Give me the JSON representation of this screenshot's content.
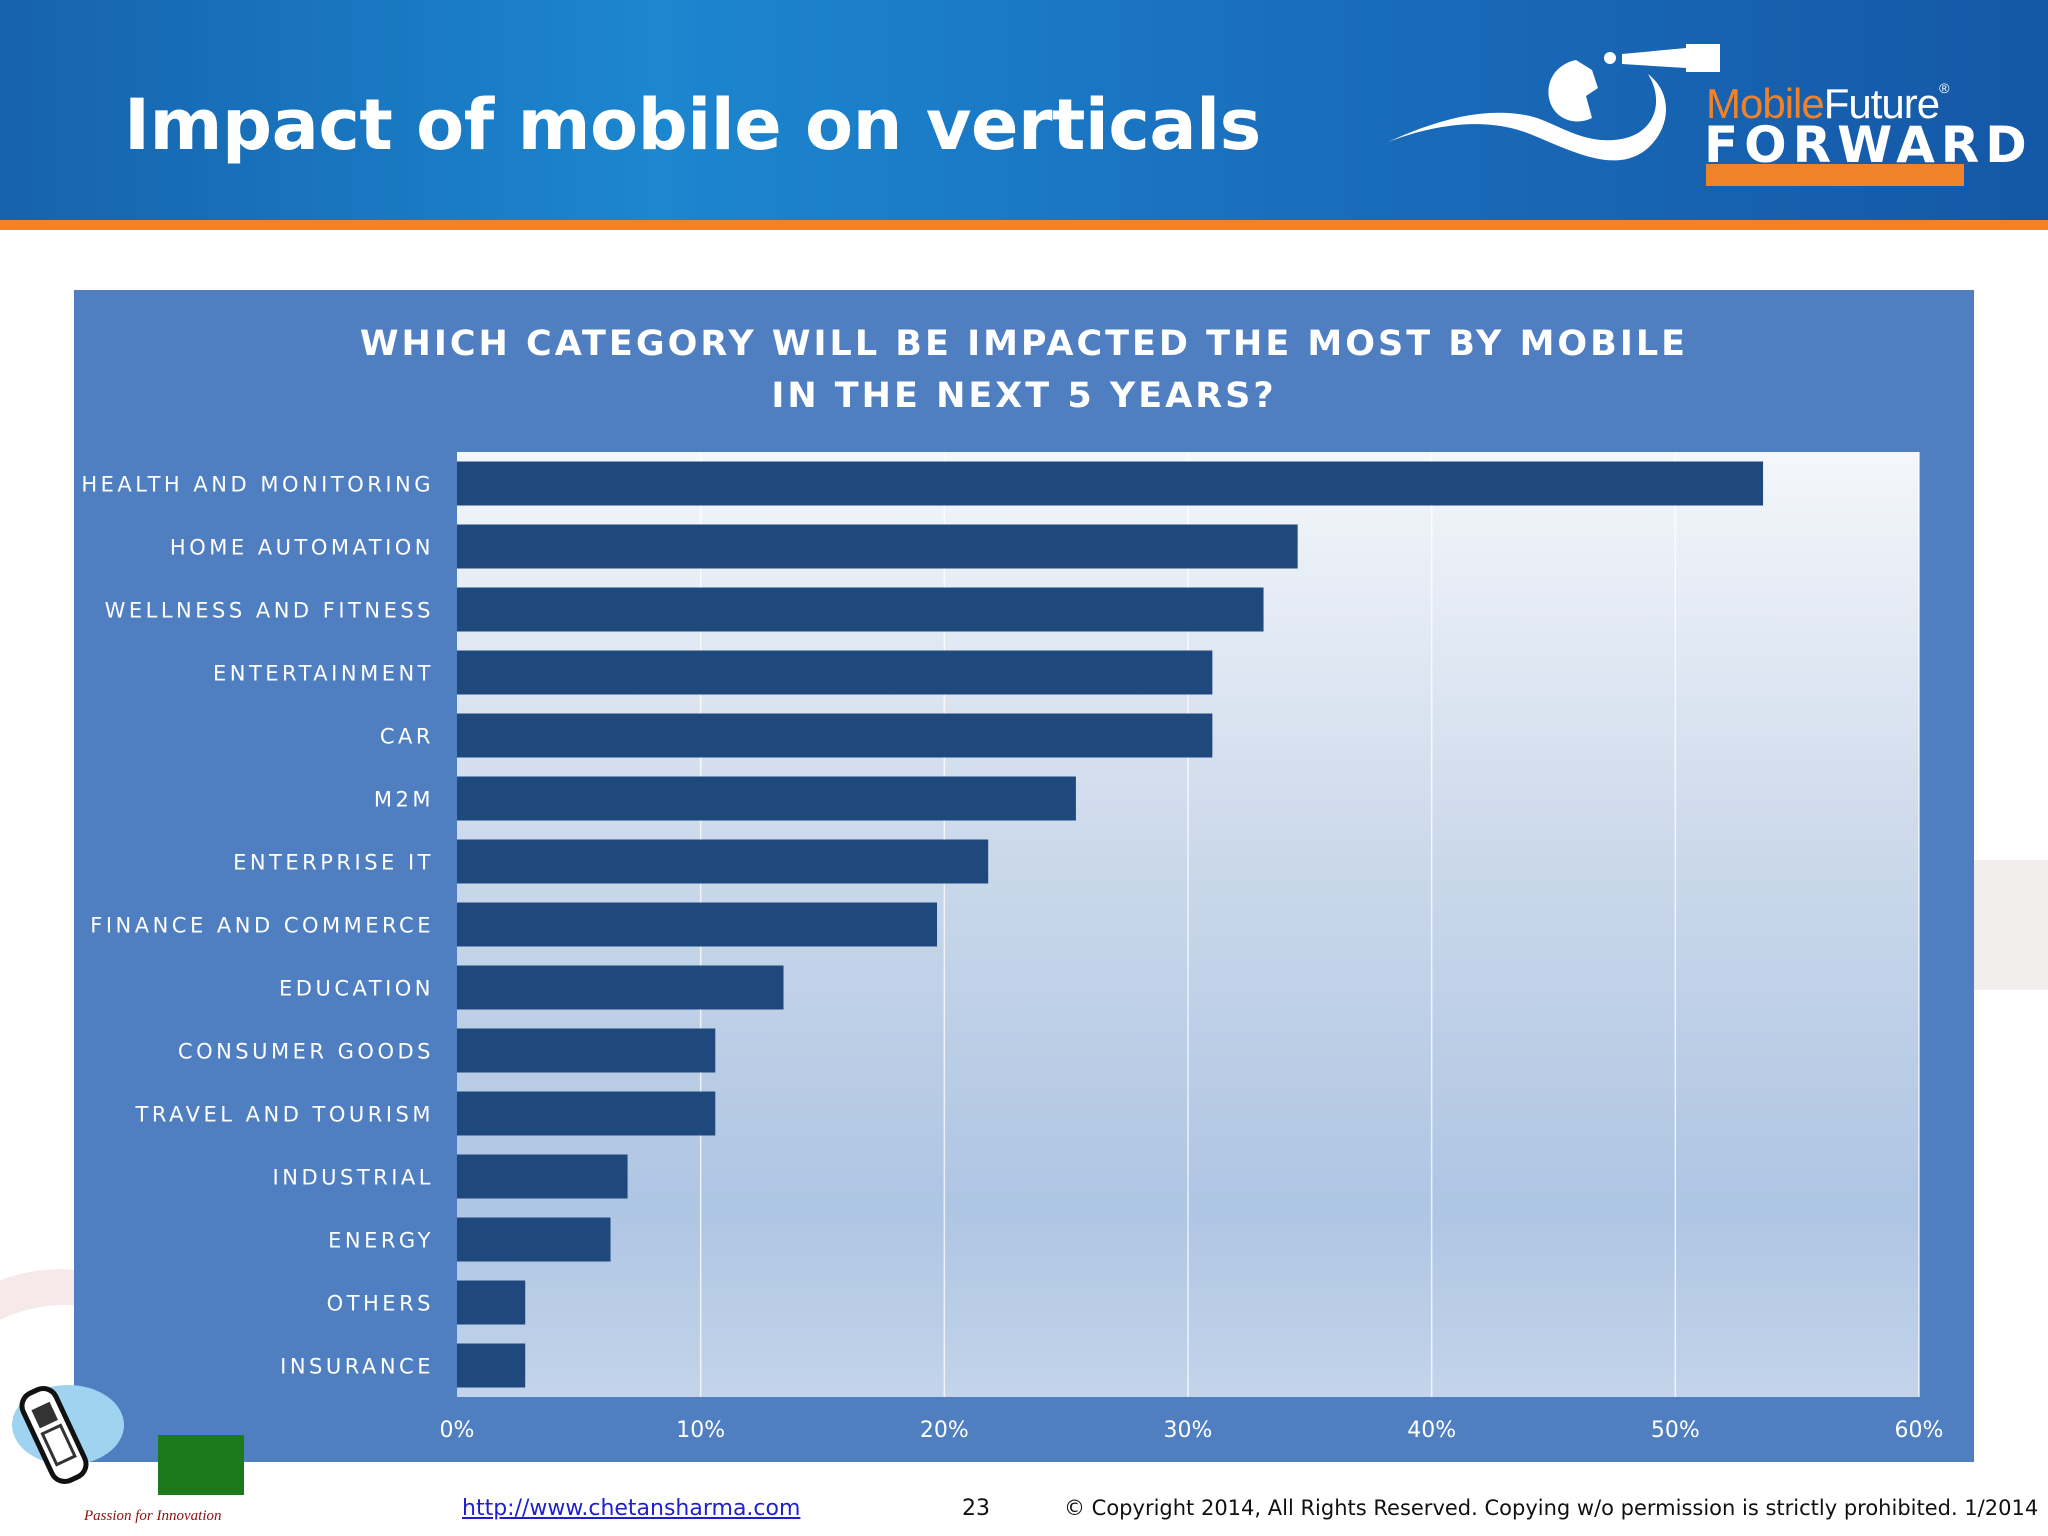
{
  "slide": {
    "title": "Impact of mobile on verticals"
  },
  "logo": {
    "brand_mobile": "Mobile",
    "brand_future": "Future",
    "brand_reg": "®",
    "brand_forward": "FORWARD"
  },
  "footer": {
    "link": "http://www.chetansharma.com",
    "page_number": "23",
    "copyright": "© Copyright 2014, All Rights Reserved. Copying w/o permission is strictly prohibited. 1/2014",
    "tagline": "Passion for Innovation"
  },
  "colors": {
    "header": "#1a6fbd",
    "accent": "#f0832a",
    "panel": "#4f7fc1",
    "bar": "#1f497d"
  },
  "chart_data": {
    "type": "bar",
    "orientation": "horizontal",
    "title": "WHICH CATEGORY WILL BE IMPACTED THE MOST BY MOBILE\nIN THE NEXT 5 YEARS?",
    "categories": [
      "HEALTH AND MONITORING",
      "HOME AUTOMATION",
      "WELLNESS AND FITNESS",
      "ENTERTAINMENT",
      "CAR",
      "M2M",
      "ENTERPRISE IT",
      "FINANCE AND COMMERCE",
      "EDUCATION",
      "CONSUMER GOODS",
      "TRAVEL AND TOURISM",
      "INDUSTRIAL",
      "ENERGY",
      "OTHERS",
      "INSURANCE"
    ],
    "values": [
      53.6,
      34.5,
      33.1,
      31.0,
      31.0,
      25.4,
      21.8,
      19.7,
      13.4,
      10.6,
      10.6,
      7.0,
      6.3,
      2.8,
      2.8
    ],
    "xlim": [
      0,
      60
    ],
    "xticks": [
      "0%",
      "10%",
      "20%",
      "30%",
      "40%",
      "50%",
      "60%"
    ],
    "xlabel": "",
    "ylabel": "",
    "grid": "vertical"
  }
}
